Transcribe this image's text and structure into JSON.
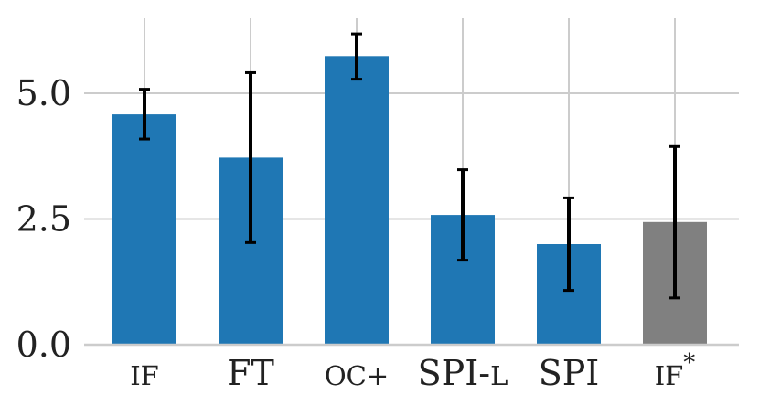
{
  "chart_data": {
    "type": "bar",
    "categories": [
      "IF",
      "FT",
      "OC+",
      "SPI-L",
      "SPI",
      "IF*"
    ],
    "category_label_parts": [
      [
        {
          "text": "IF",
          "style": "small-caps"
        }
      ],
      [
        {
          "text": "FT",
          "style": "normal"
        }
      ],
      [
        {
          "text": "OC+",
          "style": "small-caps"
        }
      ],
      [
        {
          "text": "SPI-",
          "style": "normal"
        },
        {
          "text": "L",
          "style": "small-caps"
        }
      ],
      [
        {
          "text": "SPI",
          "style": "normal"
        }
      ],
      [
        {
          "text": "IF",
          "style": "small-caps"
        },
        {
          "text": "*",
          "style": "superscript"
        }
      ]
    ],
    "values": [
      4.58,
      3.72,
      5.74,
      2.58,
      2.0,
      2.44
    ],
    "error_low": [
      4.09,
      2.03,
      5.28,
      1.68,
      1.08,
      0.93
    ],
    "error_high": [
      5.08,
      5.41,
      6.18,
      3.48,
      2.92,
      3.94
    ],
    "colors": [
      "#1f77b4",
      "#1f77b4",
      "#1f77b4",
      "#1f77b4",
      "#1f77b4",
      "#808080"
    ],
    "error_color": "#000000",
    "grid_color": "#cccccc",
    "yticks": [
      "0.0",
      "2.5",
      "5.0"
    ],
    "ytick_values": [
      0,
      2.5,
      5.0
    ],
    "ylim": [
      0,
      6.5
    ],
    "grid": true,
    "title": "",
    "xlabel": "",
    "ylabel": ""
  }
}
